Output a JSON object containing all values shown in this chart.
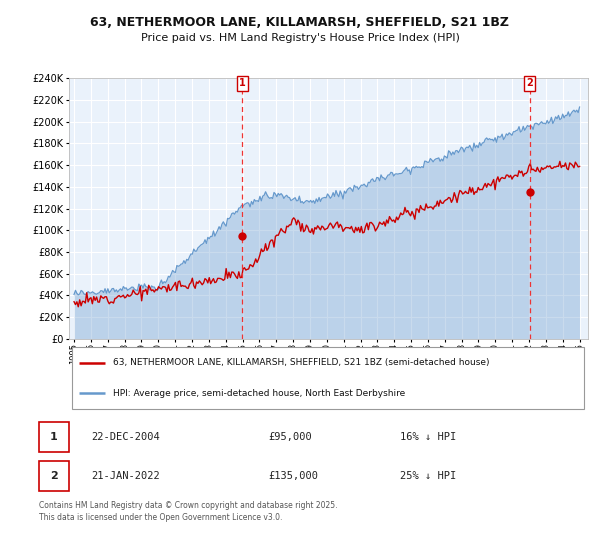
{
  "title_line1": "63, NETHERMOOR LANE, KILLAMARSH, SHEFFIELD, S21 1BZ",
  "title_line2": "Price paid vs. HM Land Registry's House Price Index (HPI)",
  "property_label": "63, NETHERMOOR LANE, KILLAMARSH, SHEFFIELD, S21 1BZ (semi-detached house)",
  "hpi_label": "HPI: Average price, semi-detached house, North East Derbyshire",
  "annotation1_date": "22-DEC-2004",
  "annotation1_price": "£95,000",
  "annotation1_hpi": "16% ↓ HPI",
  "annotation2_date": "21-JAN-2022",
  "annotation2_price": "£135,000",
  "annotation2_hpi": "25% ↓ HPI",
  "footnote": "Contains HM Land Registry data © Crown copyright and database right 2025.\nThis data is licensed under the Open Government Licence v3.0.",
  "red_color": "#cc0000",
  "blue_color": "#6699cc",
  "plot_bg": "#eaf2fb",
  "grid_color": "#ffffff",
  "vline_color": "#ee3333",
  "ylim": [
    0,
    240000
  ],
  "yticks": [
    0,
    20000,
    40000,
    60000,
    80000,
    100000,
    120000,
    140000,
    160000,
    180000,
    200000,
    220000,
    240000
  ],
  "purchase1_year": 2004.97,
  "purchase1_value": 95000,
  "purchase2_year": 2022.05,
  "purchase2_value": 135000,
  "xstart": 1995,
  "xend": 2025
}
